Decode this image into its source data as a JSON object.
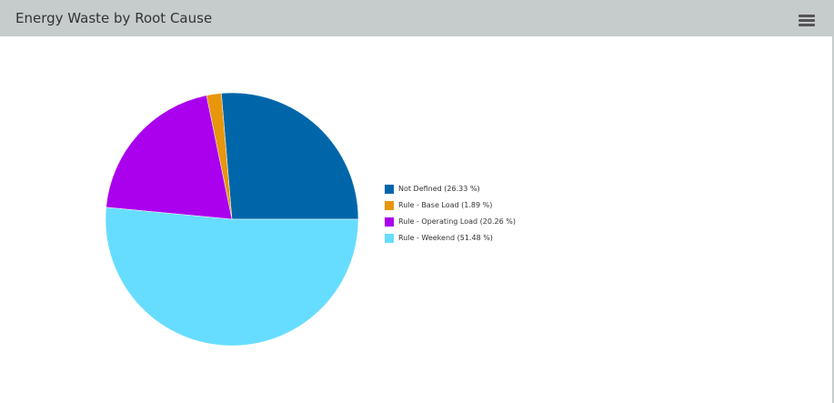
{
  "header": {
    "title": "Energy Waste by Root Cause",
    "menu_icon": "hamburger-menu-icon"
  },
  "chart_data": {
    "type": "pie",
    "title": "",
    "start_angle_deg": 0,
    "direction": "clockwise",
    "legend_position": "right",
    "slices": [
      {
        "label": "Not Defined",
        "value": 26.33,
        "color": "#0066aa"
      },
      {
        "label": "Rule - Base Load",
        "value": 1.89,
        "color": "#e8960c"
      },
      {
        "label": "Rule - Operating Load",
        "value": 20.26,
        "color": "#aa00ee"
      },
      {
        "label": "Rule - Weekend",
        "value": 51.48,
        "color": "#66ddff"
      }
    ],
    "legend": [
      "Not Defined (26.33 %)",
      "Rule - Base Load (1.89 %)",
      "Rule - Operating Load (20.26 %)",
      "Rule - Weekend (51.48 %)"
    ]
  }
}
